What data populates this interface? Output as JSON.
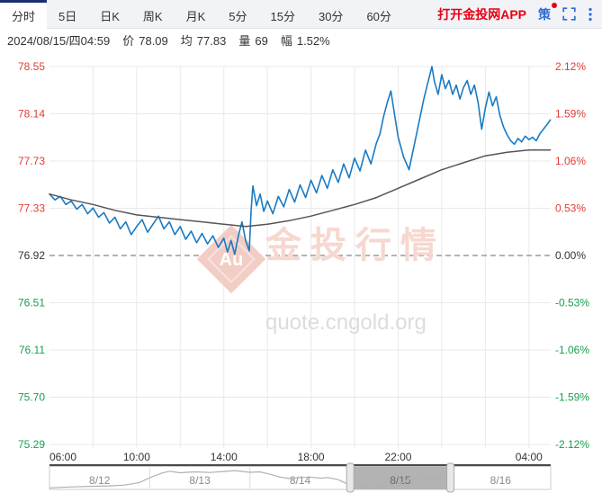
{
  "tabs": {
    "items": [
      {
        "label": "分时",
        "active": true
      },
      {
        "label": "5日",
        "active": false
      },
      {
        "label": "日K",
        "active": false
      },
      {
        "label": "周K",
        "active": false
      },
      {
        "label": "月K",
        "active": false
      },
      {
        "label": "5分",
        "active": false
      },
      {
        "label": "15分",
        "active": false
      },
      {
        "label": "30分",
        "active": false
      },
      {
        "label": "60分",
        "active": false
      }
    ],
    "app_link": "打开金投网APP",
    "strategy": "策"
  },
  "info": {
    "datetime": "2024/08/15/四04:59",
    "price_label": "价",
    "price": "78.09",
    "avg_label": "均",
    "avg": "77.83",
    "vol_label": "量",
    "vol": "69",
    "range_label": "幅",
    "range": "1.52%"
  },
  "chart_data": {
    "type": "line",
    "title": "",
    "y_range": [
      75.29,
      78.55
    ],
    "baseline_price": 76.92,
    "x_total_minutes": 1380,
    "x_grid_step_minutes": 120,
    "grid": true,
    "legend_position": "none",
    "y_left_ticks": [
      {
        "label": "78.55",
        "color": "up"
      },
      {
        "label": "78.14",
        "color": "up"
      },
      {
        "label": "77.73",
        "color": "up"
      },
      {
        "label": "77.33",
        "color": "up"
      },
      {
        "label": "76.92",
        "color": "neutral",
        "baseline": true
      },
      {
        "label": "76.51",
        "color": "down"
      },
      {
        "label": "76.11",
        "color": "down"
      },
      {
        "label": "75.70",
        "color": "down"
      },
      {
        "label": "75.29",
        "color": "down"
      }
    ],
    "y_right_ticks": [
      {
        "label": "2.12%",
        "color": "up"
      },
      {
        "label": "1.59%",
        "color": "up"
      },
      {
        "label": "1.06%",
        "color": "up"
      },
      {
        "label": "0.53%",
        "color": "up"
      },
      {
        "label": "0.00%",
        "color": "neutral",
        "baseline": true
      },
      {
        "label": "-0.53%",
        "color": "down"
      },
      {
        "label": "-1.06%",
        "color": "down"
      },
      {
        "label": "-1.59%",
        "color": "down"
      },
      {
        "label": "-2.12%",
        "color": "down"
      }
    ],
    "x_tick_labels": [
      {
        "label": "06:00",
        "minute": 0,
        "align": "start"
      },
      {
        "label": "10:00",
        "minute": 240
      },
      {
        "label": "14:00",
        "minute": 480
      },
      {
        "label": "18:00",
        "minute": 720
      },
      {
        "label": "22:00",
        "minute": 960
      },
      {
        "label": "04:00",
        "minute": 1320
      }
    ],
    "series": [
      {
        "name": "price",
        "color": "#1a7bc4",
        "width": 1.6,
        "points": [
          [
            0,
            77.45
          ],
          [
            15,
            77.4
          ],
          [
            30,
            77.43
          ],
          [
            45,
            77.36
          ],
          [
            60,
            77.39
          ],
          [
            75,
            77.32
          ],
          [
            90,
            77.36
          ],
          [
            105,
            77.28
          ],
          [
            120,
            77.33
          ],
          [
            135,
            77.25
          ],
          [
            150,
            77.29
          ],
          [
            165,
            77.2
          ],
          [
            180,
            77.25
          ],
          [
            195,
            77.15
          ],
          [
            210,
            77.21
          ],
          [
            225,
            77.1
          ],
          [
            240,
            77.17
          ],
          [
            255,
            77.23
          ],
          [
            270,
            77.12
          ],
          [
            285,
            77.19
          ],
          [
            300,
            77.26
          ],
          [
            315,
            77.15
          ],
          [
            330,
            77.21
          ],
          [
            345,
            77.1
          ],
          [
            360,
            77.17
          ],
          [
            375,
            77.06
          ],
          [
            390,
            77.13
          ],
          [
            405,
            77.03
          ],
          [
            420,
            77.11
          ],
          [
            435,
            77.02
          ],
          [
            450,
            77.09
          ],
          [
            465,
            76.99
          ],
          [
            480,
            77.07
          ],
          [
            490,
            76.95
          ],
          [
            500,
            77.05
          ],
          [
            510,
            76.93
          ],
          [
            520,
            77.09
          ],
          [
            530,
            77.21
          ],
          [
            540,
            77.05
          ],
          [
            550,
            76.96
          ],
          [
            555,
            77.3
          ],
          [
            560,
            77.52
          ],
          [
            570,
            77.35
          ],
          [
            580,
            77.45
          ],
          [
            590,
            77.3
          ],
          [
            600,
            77.39
          ],
          [
            615,
            77.28
          ],
          [
            630,
            77.43
          ],
          [
            645,
            77.34
          ],
          [
            660,
            77.49
          ],
          [
            675,
            77.38
          ],
          [
            690,
            77.53
          ],
          [
            705,
            77.42
          ],
          [
            720,
            77.57
          ],
          [
            735,
            77.46
          ],
          [
            750,
            77.61
          ],
          [
            765,
            77.5
          ],
          [
            780,
            77.66
          ],
          [
            795,
            77.55
          ],
          [
            810,
            77.71
          ],
          [
            825,
            77.59
          ],
          [
            840,
            77.76
          ],
          [
            855,
            77.65
          ],
          [
            870,
            77.83
          ],
          [
            885,
            77.71
          ],
          [
            900,
            77.89
          ],
          [
            910,
            77.97
          ],
          [
            920,
            78.12
          ],
          [
            930,
            78.24
          ],
          [
            940,
            78.34
          ],
          [
            950,
            78.14
          ],
          [
            960,
            77.94
          ],
          [
            975,
            77.77
          ],
          [
            990,
            77.66
          ],
          [
            1000,
            77.81
          ],
          [
            1010,
            77.96
          ],
          [
            1020,
            78.11
          ],
          [
            1030,
            78.26
          ],
          [
            1040,
            78.39
          ],
          [
            1053,
            78.55
          ],
          [
            1060,
            78.42
          ],
          [
            1070,
            78.31
          ],
          [
            1080,
            78.48
          ],
          [
            1090,
            78.36
          ],
          [
            1100,
            78.43
          ],
          [
            1110,
            78.31
          ],
          [
            1120,
            78.39
          ],
          [
            1130,
            78.27
          ],
          [
            1140,
            78.37
          ],
          [
            1150,
            78.43
          ],
          [
            1160,
            78.31
          ],
          [
            1170,
            78.39
          ],
          [
            1180,
            78.24
          ],
          [
            1190,
            78.01
          ],
          [
            1200,
            78.19
          ],
          [
            1210,
            78.33
          ],
          [
            1220,
            78.21
          ],
          [
            1230,
            78.29
          ],
          [
            1240,
            78.13
          ],
          [
            1250,
            78.03
          ],
          [
            1260,
            77.96
          ],
          [
            1270,
            77.91
          ],
          [
            1280,
            77.88
          ],
          [
            1290,
            77.93
          ],
          [
            1300,
            77.9
          ],
          [
            1310,
            77.95
          ],
          [
            1320,
            77.92
          ],
          [
            1330,
            77.94
          ],
          [
            1340,
            77.91
          ],
          [
            1350,
            77.97
          ],
          [
            1360,
            78.01
          ],
          [
            1370,
            78.05
          ],
          [
            1379,
            78.09
          ]
        ]
      },
      {
        "name": "average",
        "color": "#555555",
        "width": 1.5,
        "points": [
          [
            0,
            77.45
          ],
          [
            60,
            77.4
          ],
          [
            120,
            77.36
          ],
          [
            180,
            77.31
          ],
          [
            240,
            77.27
          ],
          [
            300,
            77.25
          ],
          [
            360,
            77.23
          ],
          [
            420,
            77.21
          ],
          [
            480,
            77.19
          ],
          [
            540,
            77.17
          ],
          [
            600,
            77.19
          ],
          [
            660,
            77.22
          ],
          [
            720,
            77.26
          ],
          [
            780,
            77.31
          ],
          [
            840,
            77.36
          ],
          [
            900,
            77.42
          ],
          [
            960,
            77.5
          ],
          [
            1020,
            77.58
          ],
          [
            1080,
            77.66
          ],
          [
            1140,
            77.72
          ],
          [
            1200,
            77.78
          ],
          [
            1260,
            77.81
          ],
          [
            1320,
            77.83
          ],
          [
            1379,
            77.83
          ]
        ]
      }
    ],
    "watermark": {
      "brand": "金投行情",
      "site": "quote.cngold.org",
      "logo": "Au"
    }
  },
  "navigator": {
    "dates": [
      "8/12",
      "8/13",
      "8/14",
      "8/15",
      "8/16"
    ],
    "selected_index": 3,
    "mini_line": [
      [
        0.0,
        0.97
      ],
      [
        0.04,
        0.93
      ],
      [
        0.08,
        0.9
      ],
      [
        0.12,
        0.88
      ],
      [
        0.15,
        0.84
      ],
      [
        0.18,
        0.72
      ],
      [
        0.2,
        0.5
      ],
      [
        0.225,
        0.28
      ],
      [
        0.24,
        0.2
      ],
      [
        0.26,
        0.27
      ],
      [
        0.29,
        0.23
      ],
      [
        0.32,
        0.26
      ],
      [
        0.35,
        0.21
      ],
      [
        0.37,
        0.17
      ],
      [
        0.4,
        0.25
      ],
      [
        0.42,
        0.23
      ],
      [
        0.44,
        0.34
      ],
      [
        0.46,
        0.47
      ],
      [
        0.48,
        0.54
      ],
      [
        0.5,
        0.49
      ],
      [
        0.52,
        0.47
      ],
      [
        0.54,
        0.52
      ],
      [
        0.555,
        0.49
      ],
      [
        0.575,
        0.58
      ],
      [
        0.59,
        0.74
      ],
      [
        0.6,
        0.88
      ],
      [
        0.62,
        0.92
      ],
      [
        0.64,
        0.88
      ],
      [
        0.66,
        0.91
      ],
      [
        0.68,
        0.86
      ],
      [
        0.695,
        0.9
      ],
      [
        0.71,
        0.62
      ],
      [
        0.73,
        0.55
      ],
      [
        0.75,
        0.5
      ],
      [
        0.77,
        0.56
      ],
      [
        0.79,
        0.53
      ],
      [
        0.805,
        0.63
      ]
    ]
  },
  "colors": {
    "up": "#e23b35",
    "down": "#17a04e",
    "neutral": "#333333",
    "price_line": "#1a7bc4",
    "avg_line": "#555555",
    "accent_blue": "#2e6bd0",
    "accent_red": "#e60012",
    "grid": "#e9e9e9",
    "baseline_dash": "#888888",
    "active_tab_border": "#1c2f6e",
    "watermark_pink": "#f2cdc5",
    "watermark_text": "#f6d8d0",
    "watermark_gray": "#dcdcdc"
  }
}
